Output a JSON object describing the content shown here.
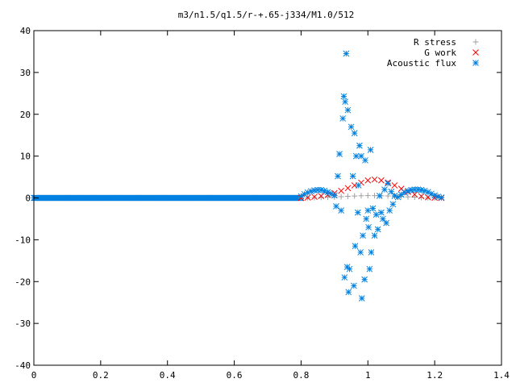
{
  "chart_data": {
    "type": "scatter",
    "title": "m3/n1.5/q1.5/r-+.65-j334/M1.0/512",
    "xlabel": "",
    "ylabel": "",
    "xlim": [
      0,
      1.4
    ],
    "ylim": [
      -40,
      40
    ],
    "x_ticks": [
      0,
      0.2,
      0.4,
      0.6,
      0.8,
      1,
      1.2,
      1.4
    ],
    "x_tick_labels": [
      "0",
      "0.2",
      "0.4",
      "0.6",
      "0.8",
      "1",
      "1.2",
      "1.4"
    ],
    "y_ticks": [
      -40,
      -30,
      -20,
      -10,
      0,
      10,
      20,
      30,
      40
    ],
    "y_tick_labels": [
      "-40",
      "-30",
      "-20",
      "-10",
      "0",
      "10",
      "20",
      "30",
      "40"
    ],
    "grid": false,
    "legend_position": "top-right",
    "series": [
      {
        "name": "R stress",
        "marker": "plus",
        "color": "#a0a0a0",
        "points": [
          [
            0.8,
            0.02
          ],
          [
            0.82,
            0.05
          ],
          [
            0.84,
            0.08
          ],
          [
            0.86,
            0.12
          ],
          [
            0.88,
            0.16
          ],
          [
            0.9,
            0.22
          ],
          [
            0.92,
            0.3
          ],
          [
            0.94,
            0.38
          ],
          [
            0.96,
            0.46
          ],
          [
            0.98,
            0.52
          ],
          [
            1.0,
            0.55
          ],
          [
            1.02,
            0.55
          ],
          [
            1.04,
            0.52
          ],
          [
            1.06,
            0.48
          ],
          [
            1.08,
            0.42
          ],
          [
            1.1,
            0.35
          ],
          [
            1.12,
            0.26
          ],
          [
            1.14,
            0.18
          ],
          [
            1.16,
            0.1
          ],
          [
            1.18,
            0.05
          ],
          [
            1.2,
            0.02
          ],
          [
            1.22,
            0.0
          ]
        ]
      },
      {
        "name": "G work",
        "marker": "cross",
        "color": "#ff0000",
        "points": [
          [
            0.8,
            0.0
          ],
          [
            0.82,
            0.1
          ],
          [
            0.84,
            0.25
          ],
          [
            0.86,
            0.45
          ],
          [
            0.88,
            0.75
          ],
          [
            0.9,
            1.15
          ],
          [
            0.92,
            1.7
          ],
          [
            0.94,
            2.35
          ],
          [
            0.96,
            3.0
          ],
          [
            0.98,
            3.65
          ],
          [
            1.0,
            4.2
          ],
          [
            1.02,
            4.4
          ],
          [
            1.04,
            4.2
          ],
          [
            1.06,
            3.7
          ],
          [
            1.08,
            3.0
          ],
          [
            1.1,
            2.2
          ],
          [
            1.12,
            1.45
          ],
          [
            1.14,
            0.85
          ],
          [
            1.16,
            0.4
          ],
          [
            1.18,
            0.15
          ],
          [
            1.2,
            0.05
          ],
          [
            1.22,
            0.0
          ]
        ]
      },
      {
        "name": "Acoustic flux",
        "marker": "star",
        "color": "#0080e0",
        "points": [
          [
            0.8,
            0.4
          ],
          [
            0.81,
            0.9
          ],
          [
            0.82,
            1.3
          ],
          [
            0.83,
            1.6
          ],
          [
            0.84,
            1.8
          ],
          [
            0.85,
            1.9
          ],
          [
            0.86,
            1.9
          ],
          [
            0.87,
            1.7
          ],
          [
            0.88,
            1.4
          ],
          [
            0.89,
            1.0
          ],
          [
            0.9,
            0.6
          ],
          [
            0.905,
            -2.0
          ],
          [
            0.91,
            5.2
          ],
          [
            0.915,
            10.5
          ],
          [
            0.92,
            -3.0
          ],
          [
            0.925,
            19.0
          ],
          [
            0.928,
            24.3
          ],
          [
            0.93,
            -19.0
          ],
          [
            0.932,
            23.0
          ],
          [
            0.935,
            34.5
          ],
          [
            0.938,
            -16.5
          ],
          [
            0.94,
            21.0
          ],
          [
            0.942,
            -22.5
          ],
          [
            0.945,
            -17.0
          ],
          [
            0.95,
            17.0
          ],
          [
            0.955,
            5.2
          ],
          [
            0.958,
            -21.0
          ],
          [
            0.96,
            15.5
          ],
          [
            0.962,
            -11.5
          ],
          [
            0.965,
            10.0
          ],
          [
            0.97,
            -3.5
          ],
          [
            0.972,
            3.0
          ],
          [
            0.975,
            12.5
          ],
          [
            0.978,
            -13.0
          ],
          [
            0.98,
            10.0
          ],
          [
            0.982,
            -24.0
          ],
          [
            0.985,
            -9.0
          ],
          [
            0.99,
            -19.5
          ],
          [
            0.992,
            9.0
          ],
          [
            0.995,
            -5.0
          ],
          [
            1.0,
            -3.0
          ],
          [
            1.002,
            -7.0
          ],
          [
            1.005,
            -17.0
          ],
          [
            1.008,
            11.5
          ],
          [
            1.01,
            -13.0
          ],
          [
            1.015,
            -2.5
          ],
          [
            1.02,
            -9.0
          ],
          [
            1.025,
            -4.0
          ],
          [
            1.03,
            -7.5
          ],
          [
            1.035,
            0.5
          ],
          [
            1.04,
            -3.5
          ],
          [
            1.045,
            -5.0
          ],
          [
            1.05,
            2.0
          ],
          [
            1.055,
            -6.0
          ],
          [
            1.06,
            3.5
          ],
          [
            1.065,
            -3.0
          ],
          [
            1.07,
            1.5
          ],
          [
            1.075,
            -1.5
          ],
          [
            1.08,
            0.5
          ],
          [
            1.09,
            0.2
          ],
          [
            1.1,
            0.8
          ],
          [
            1.11,
            1.3
          ],
          [
            1.12,
            1.7
          ],
          [
            1.13,
            1.9
          ],
          [
            1.14,
            2.0
          ],
          [
            1.15,
            2.0
          ],
          [
            1.16,
            1.9
          ],
          [
            1.17,
            1.7
          ],
          [
            1.18,
            1.4
          ],
          [
            1.19,
            1.0
          ],
          [
            1.2,
            0.6
          ],
          [
            1.21,
            0.3
          ],
          [
            1.22,
            0.1
          ]
        ]
      }
    ]
  }
}
